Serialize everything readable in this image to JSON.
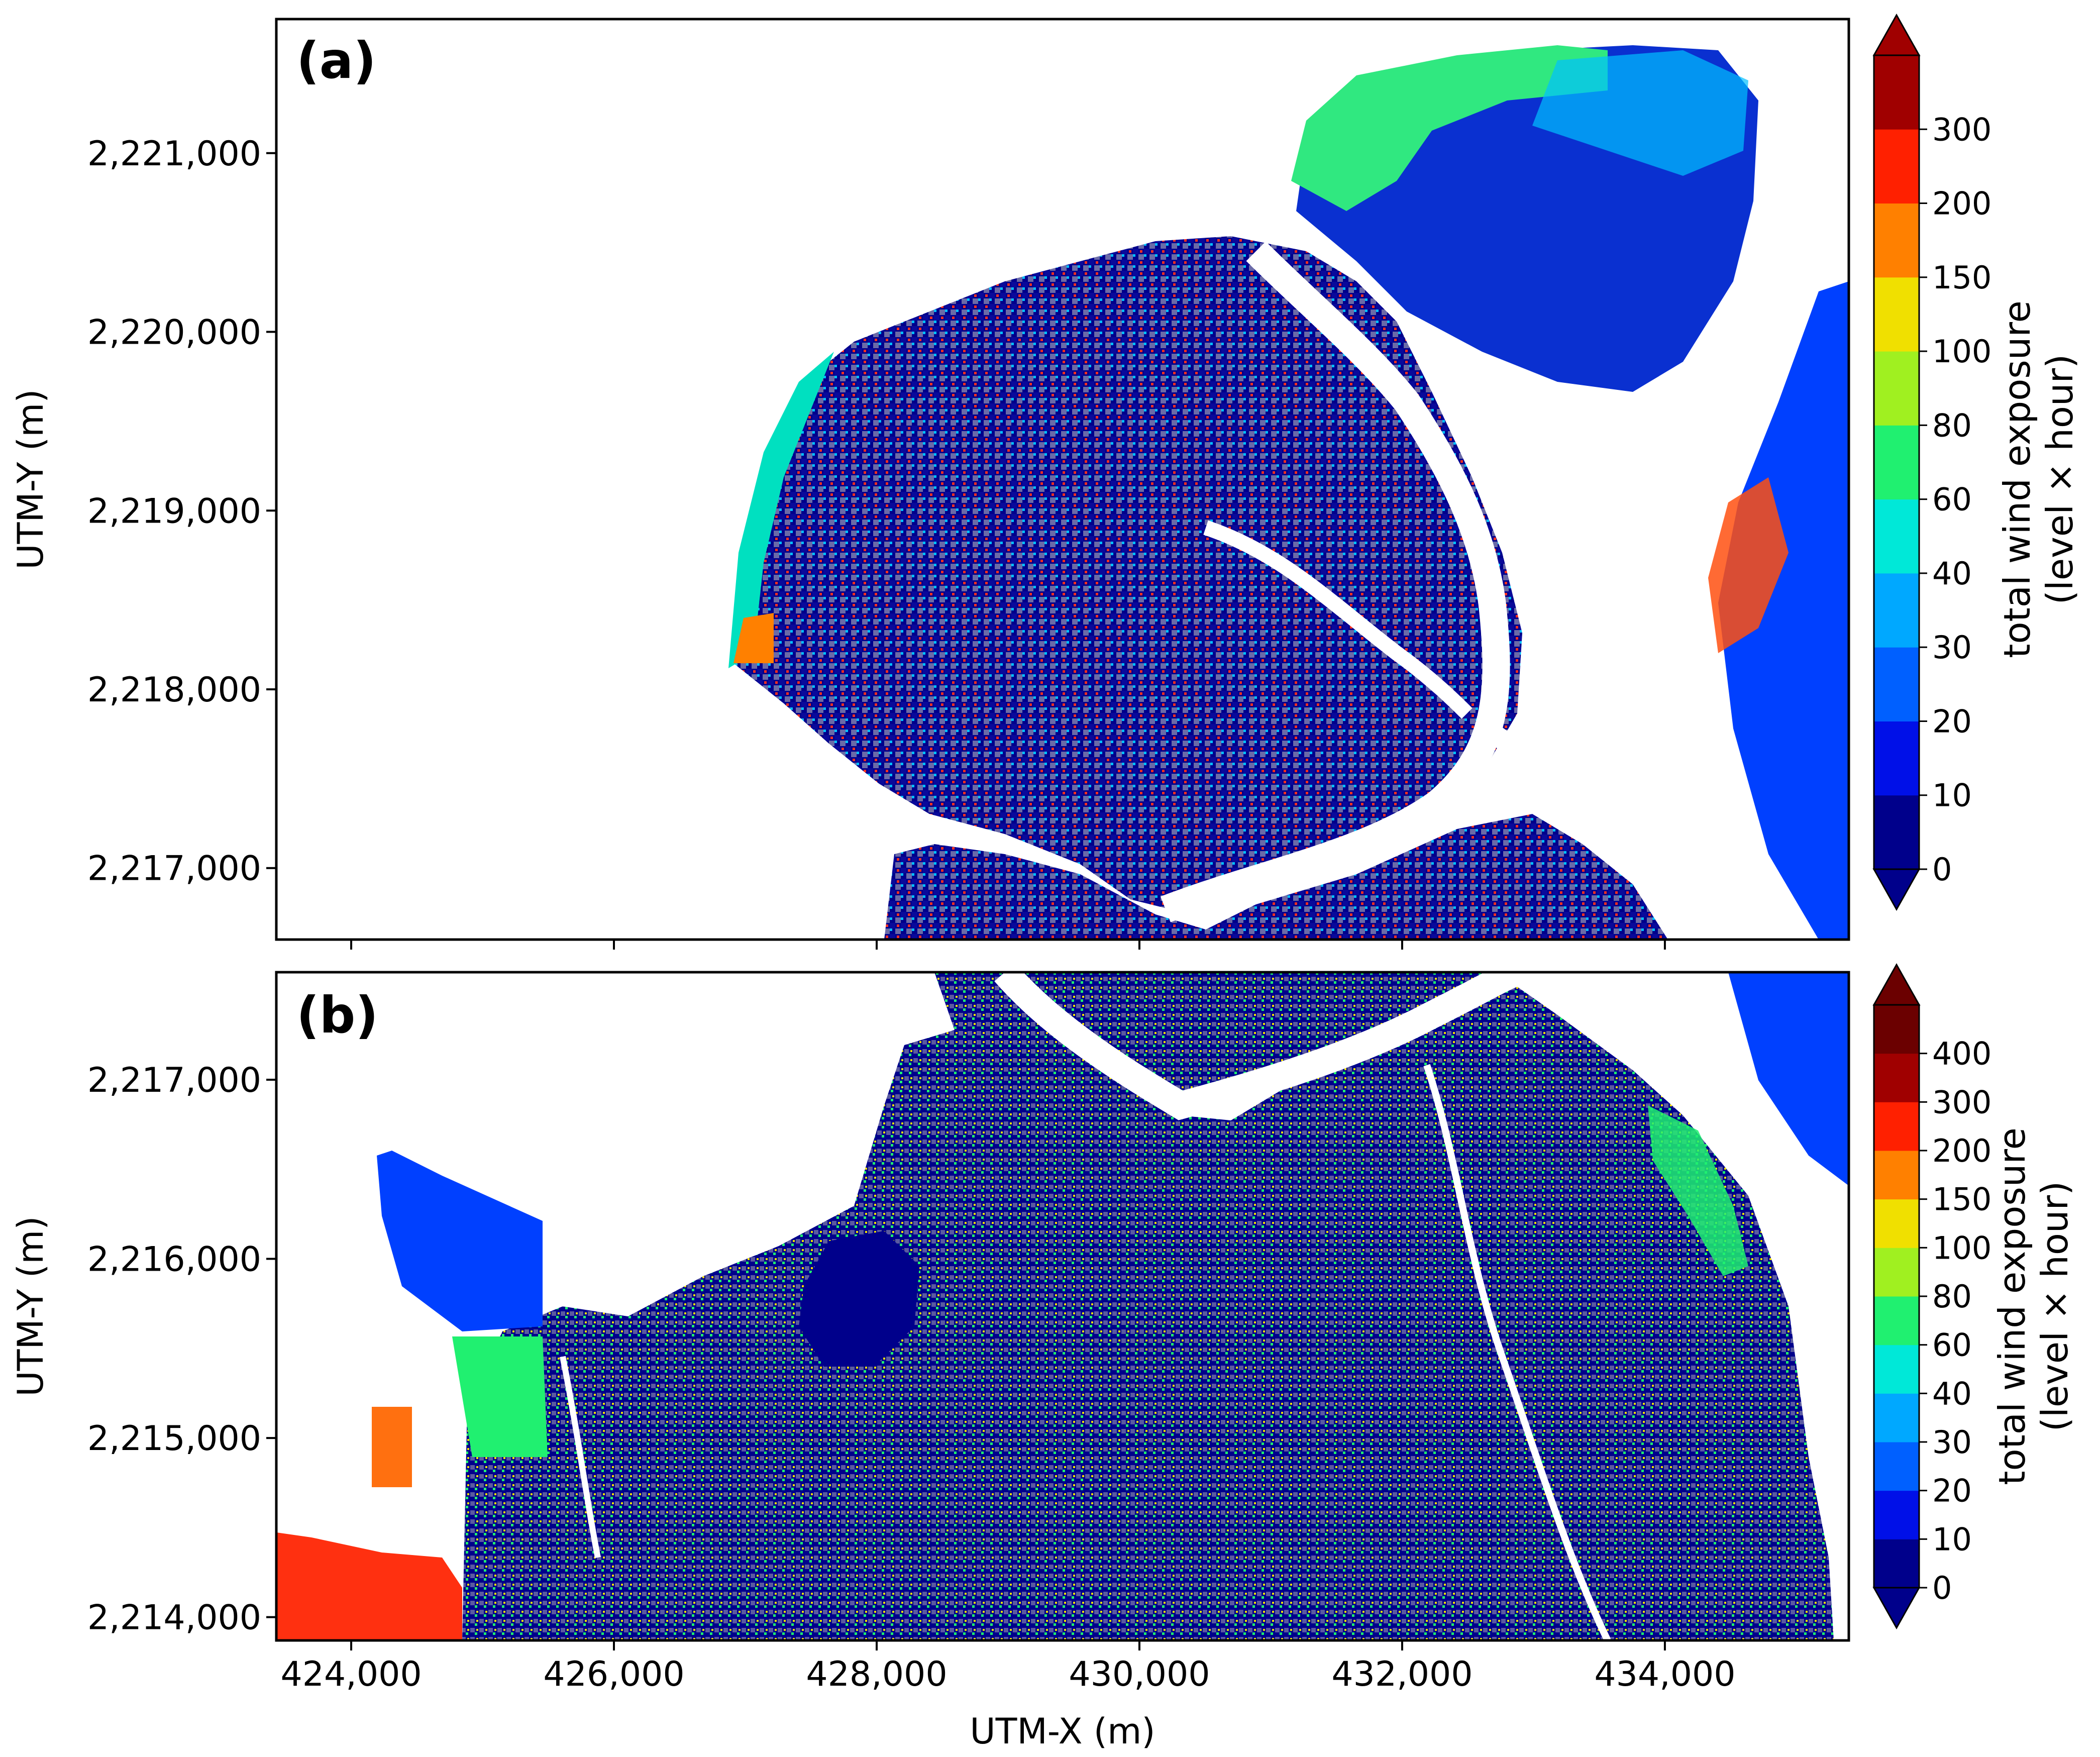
{
  "chart_data": [
    {
      "type": "heatmap",
      "panel_label": "(a)",
      "xlabel": "",
      "ylabel": "UTM-Y (m)",
      "x_ticks": [
        "424,000",
        "426,000",
        "428,000",
        "430,000",
        "432,000",
        "434,000"
      ],
      "x_tick_values": [
        424000,
        426000,
        428000,
        430000,
        432000,
        434000
      ],
      "y_ticks": [
        "2,221,000",
        "2,220,000",
        "2,219,000",
        "2,218,000",
        "2,217,000"
      ],
      "y_tick_values": [
        2221000,
        2220000,
        2219000,
        2218000,
        2217000
      ],
      "xlim": [
        423430,
        435400
      ],
      "ylim": [
        2216600,
        2221750
      ],
      "x_tick_labels_visible": false,
      "colorbar": {
        "label_line1": "total wind exposure",
        "label_line2": "(level × hour)",
        "levels": [
          "0",
          "10",
          "20",
          "30",
          "40",
          "60",
          "80",
          "100",
          "150",
          "200",
          "300"
        ],
        "colors": [
          "#00008b",
          "#0010e8",
          "#0060ff",
          "#00a8ff",
          "#00e8d8",
          "#20f070",
          "#a0f020",
          "#f0e000",
          "#ff8000",
          "#ff2000",
          "#a00000"
        ],
        "extend": "both"
      }
    },
    {
      "type": "heatmap",
      "panel_label": "(b)",
      "xlabel": "UTM-X (m)",
      "ylabel": "UTM-Y (m)",
      "x_ticks": [
        "424,000",
        "426,000",
        "428,000",
        "430,000",
        "432,000",
        "434,000"
      ],
      "x_tick_values": [
        424000,
        426000,
        428000,
        430000,
        432000,
        434000
      ],
      "y_ticks": [
        "2,217,000",
        "2,216,000",
        "2,215,000",
        "2,214,000"
      ],
      "y_tick_values": [
        2217000,
        2216000,
        2215000,
        2214000
      ],
      "xlim": [
        423430,
        435400
      ],
      "ylim": [
        2213870,
        2217600
      ],
      "x_tick_labels_visible": true,
      "colorbar": {
        "label_line1": "total wind exposure",
        "label_line2": "(level × hour)",
        "levels": [
          "0",
          "10",
          "20",
          "30",
          "40",
          "60",
          "80",
          "100",
          "150",
          "200",
          "300",
          "400"
        ],
        "colors": [
          "#00008b",
          "#0010e8",
          "#0060ff",
          "#00a8ff",
          "#00e8d8",
          "#20f070",
          "#a0f020",
          "#f0e000",
          "#ff8000",
          "#ff2000",
          "#a00000",
          "#6b0000"
        ],
        "extend": "both"
      }
    }
  ]
}
